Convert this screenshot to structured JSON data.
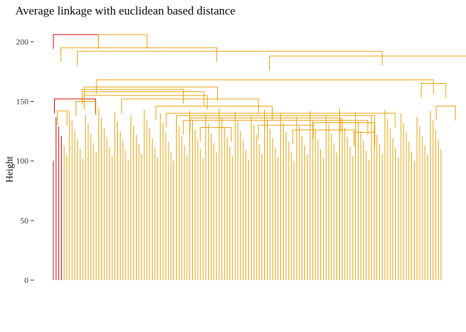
{
  "chart_data": {
    "type": "dendrogram",
    "title": "Average linkage with euclidean based distance",
    "ylabel": "Height",
    "xlabel": "",
    "ylim": [
      0,
      206
    ],
    "yticks": [
      0,
      50,
      100,
      150,
      200
    ],
    "grid": false,
    "colors": {
      "cluster_1": "#CC0000",
      "cluster_2": "#E69F00"
    },
    "leaf_count": 146,
    "merges": [
      {
        "x1": 0.0,
        "x2": 66.0,
        "h": 206,
        "color": "cluster_1"
      },
      {
        "x1": 66.0,
        "x2": 137.0,
        "h": 206,
        "color": "cluster_2"
      },
      {
        "x1": 1.5,
        "x2": 61.5,
        "h": 152,
        "color": "cluster_1"
      },
      {
        "x1": 11.0,
        "x2": 239.0,
        "h": 195,
        "color": "cluster_2"
      },
      {
        "x1": 35.0,
        "x2": 481.0,
        "h": 192,
        "color": "cluster_2"
      },
      {
        "x1": 316.0,
        "x2": 643.0,
        "h": 188,
        "color": "cluster_2"
      },
      {
        "x1": 642.0,
        "x2": 644.0,
        "h": 174,
        "color": "cluster_2"
      },
      {
        "x1": 63.0,
        "x2": 556.0,
        "h": 168,
        "color": "cluster_2"
      },
      {
        "x1": 538.0,
        "x2": 574.0,
        "h": 165,
        "color": "cluster_2"
      },
      {
        "x1": 45.0,
        "x2": 240.0,
        "h": 162,
        "color": "cluster_2"
      },
      {
        "x1": 42.0,
        "x2": 190.0,
        "h": 160,
        "color": "cluster_2"
      },
      {
        "x1": 45.0,
        "x2": 220.0,
        "h": 158,
        "color": "cluster_2"
      },
      {
        "x1": 45.0,
        "x2": 225.0,
        "h": 155,
        "color": "cluster_2"
      },
      {
        "x1": 100.0,
        "x2": 300.0,
        "h": 152,
        "color": "cluster_2"
      },
      {
        "x1": 33.0,
        "x2": 62.0,
        "h": 150,
        "color": "cluster_2"
      },
      {
        "x1": 150.0,
        "x2": 320.0,
        "h": 146,
        "color": "cluster_2"
      },
      {
        "x1": 560.0,
        "x2": 588.0,
        "h": 146,
        "color": "cluster_2"
      },
      {
        "x1": 6.0,
        "x2": 20.0,
        "h": 142,
        "color": "cluster_2"
      },
      {
        "x1": 165.0,
        "x2": 500.0,
        "h": 140,
        "color": "cluster_2"
      },
      {
        "x1": 180.0,
        "x2": 470.0,
        "h": 138,
        "color": "cluster_2"
      },
      {
        "x1": 200.0,
        "x2": 420.0,
        "h": 136,
        "color": "cluster_2"
      },
      {
        "x1": 190.0,
        "x2": 460.0,
        "h": 134,
        "color": "cluster_2"
      },
      {
        "x1": 380.0,
        "x2": 470.0,
        "h": 132,
        "color": "cluster_2"
      },
      {
        "x1": 300.0,
        "x2": 380.0,
        "h": 130,
        "color": "cluster_2"
      },
      {
        "x1": 215.0,
        "x2": 260.0,
        "h": 128,
        "color": "cluster_2"
      },
      {
        "x1": 350.0,
        "x2": 440.0,
        "h": 126,
        "color": "cluster_2"
      },
      {
        "x1": 440.0,
        "x2": 470.0,
        "h": 124,
        "color": "cluster_2"
      }
    ]
  }
}
